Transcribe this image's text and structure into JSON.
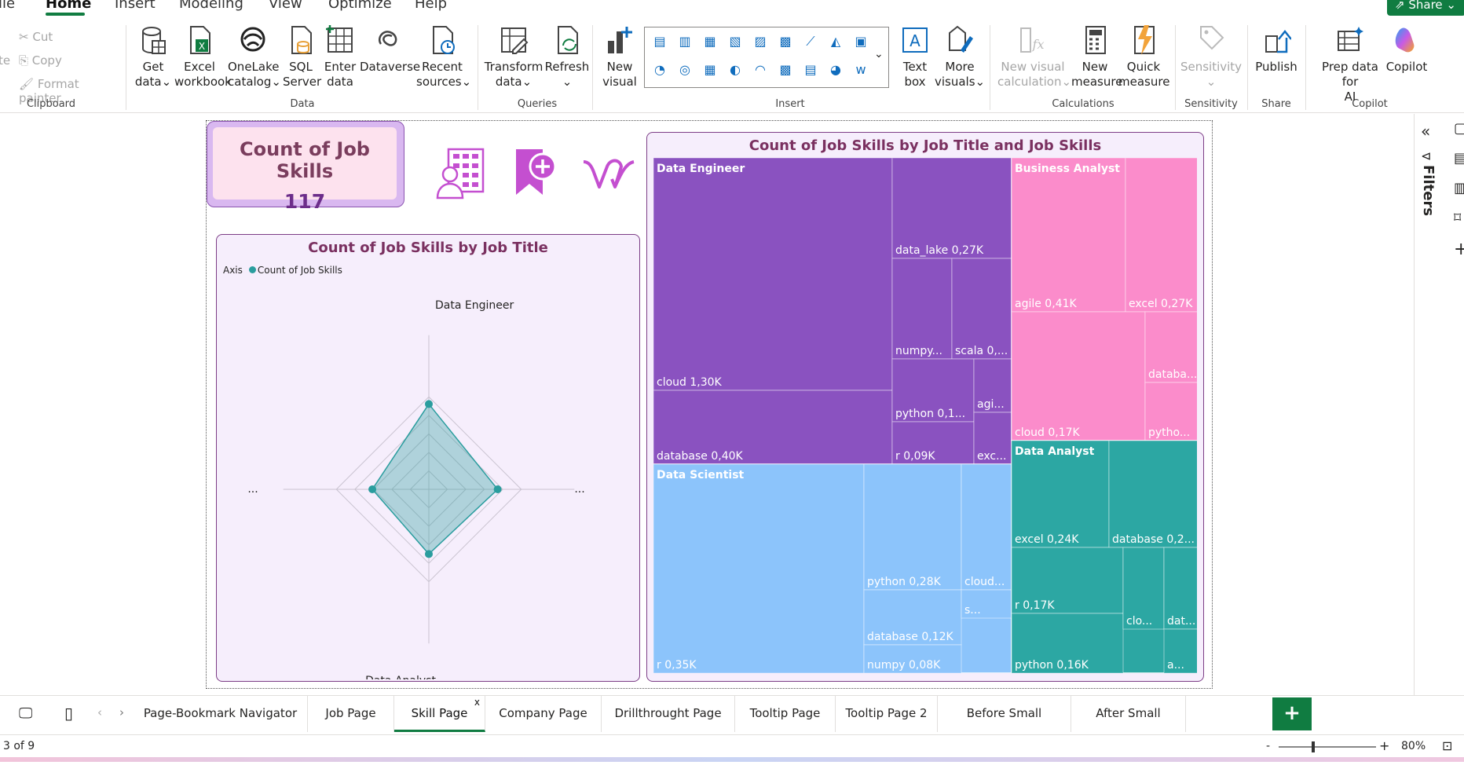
{
  "menu": {
    "items": [
      "ile",
      "Home",
      "Insert",
      "Modeling",
      "View",
      "Optimize",
      "Help"
    ],
    "share": "Share"
  },
  "ribbon": {
    "clipboard": {
      "cut": "Cut",
      "copy": "Copy",
      "format_painter": "Format painter",
      "label": "Clipboard",
      "paste_partial": "te"
    },
    "data": {
      "get_data": [
        "Get",
        "data"
      ],
      "excel": [
        "Excel",
        "workbook"
      ],
      "onelake": [
        "OneLake",
        "catalog"
      ],
      "sql": [
        "SQL",
        "Server"
      ],
      "enter": [
        "Enter",
        "data"
      ],
      "dataverse": [
        "Dataverse",
        ""
      ],
      "recent": [
        "Recent",
        "sources"
      ],
      "label": "Data"
    },
    "queries": {
      "transform": [
        "Transform",
        "data"
      ],
      "refresh": [
        "Refresh",
        ""
      ],
      "label": "Queries"
    },
    "insert": {
      "new_visual": [
        "New",
        "visual"
      ],
      "text_box": [
        "Text",
        "box"
      ],
      "more_visuals": [
        "More",
        "visuals"
      ],
      "label": "Insert"
    },
    "calculations": {
      "new_visual_calc": [
        "New visual",
        "calculation"
      ],
      "new_measure": [
        "New",
        "measure"
      ],
      "quick_measure": [
        "Quick",
        "measure"
      ],
      "label": "Calculations"
    },
    "sensitivity": {
      "sensitivity": [
        "Sensitivity",
        ""
      ],
      "label": "Sensitivity"
    },
    "share": {
      "publish": [
        "Publish",
        ""
      ],
      "label": "Share"
    },
    "copilot": {
      "prep": [
        "Prep data for",
        "AI"
      ],
      "copilot": [
        "Copilot",
        ""
      ],
      "label": "Copilot"
    }
  },
  "kpi": {
    "title": "Count of Job Skills",
    "value": "117"
  },
  "radar": {
    "title": "Count of Job Skills by Job Title",
    "legend_axis": "Axis",
    "legend_series": "Count of Job Skills",
    "axis_labels": {
      "top": "Data Engineer",
      "bottom": "Data Analyst",
      "left": "...",
      "right": "..."
    }
  },
  "treemap": {
    "title": "Count of Job Skills by Job Title and Job Skills"
  },
  "chart_data": [
    {
      "type": "radar",
      "title": "Count of Job Skills by Job Title",
      "categories": [
        "Data Engineer",
        "...",
        "Data Analyst",
        "..."
      ],
      "series": [
        {
          "name": "Count of Job Skills",
          "values": [
            0.83,
            0.67,
            0.63,
            0.55
          ]
        }
      ],
      "colors": {
        "series": "#2a9d9e"
      }
    },
    {
      "type": "treemap",
      "title": "Count of Job Skills by Job Title and Job Skills",
      "groups": [
        {
          "name": "Data Engineer",
          "color": "#8a52c0",
          "items": [
            {
              "label": "cloud 1,30K",
              "value": 1300
            },
            {
              "label": "database 0,40K",
              "value": 400
            },
            {
              "label": "data_lake 0,27K",
              "value": 270
            },
            {
              "label": "numpy...",
              "value": 130
            },
            {
              "label": "scala 0,...",
              "value": 110
            },
            {
              "label": "python 0,1...",
              "value": 100
            },
            {
              "label": "r 0,09K",
              "value": 90
            },
            {
              "label": "agi...",
              "value": 50
            },
            {
              "label": "exc...",
              "value": 40
            }
          ]
        },
        {
          "name": "Business Analyst",
          "color": "#fb8ccb",
          "items": [
            {
              "label": "agile 0,41K",
              "value": 410
            },
            {
              "label": "excel 0,27K",
              "value": 270
            },
            {
              "label": "cloud 0,17K",
              "value": 170
            },
            {
              "label": "databa...",
              "value": 90
            },
            {
              "label": "pytho...",
              "value": 70
            }
          ]
        },
        {
          "name": "Data Scientist",
          "color": "#8cc4fb",
          "items": [
            {
              "label": "r 0,35K",
              "value": 350
            },
            {
              "label": "python 0,28K",
              "value": 280
            },
            {
              "label": "cloud...",
              "value": 150
            },
            {
              "label": "database 0,12K",
              "value": 120
            },
            {
              "label": "numpy 0,08K",
              "value": 80
            },
            {
              "label": "s...",
              "value": 30
            }
          ]
        },
        {
          "name": "Data Analyst",
          "color": "#2ca7a3",
          "items": [
            {
              "label": "excel 0,24K",
              "value": 240
            },
            {
              "label": "database 0,2...",
              "value": 200
            },
            {
              "label": "r 0,17K",
              "value": 170
            },
            {
              "label": "python 0,16K",
              "value": 160
            },
            {
              "label": "clo...",
              "value": 60
            },
            {
              "label": "dat...",
              "value": 50
            },
            {
              "label": "a...",
              "value": 20
            }
          ]
        }
      ]
    }
  ],
  "tabs": [
    "Page-Bookmark Navigator",
    "Job Page",
    "Skill Page",
    "Company Page",
    "Drillthrought Page",
    "Tooltip Page",
    "Tooltip Page 2",
    "Before Small Multipsles",
    "After Small Multipsles"
  ],
  "active_tab": "Skill Page",
  "add_tab": "+",
  "close_tab": "x",
  "status": {
    "page": "3 of 9",
    "zoom": "80%"
  },
  "filters_label": "Filters"
}
